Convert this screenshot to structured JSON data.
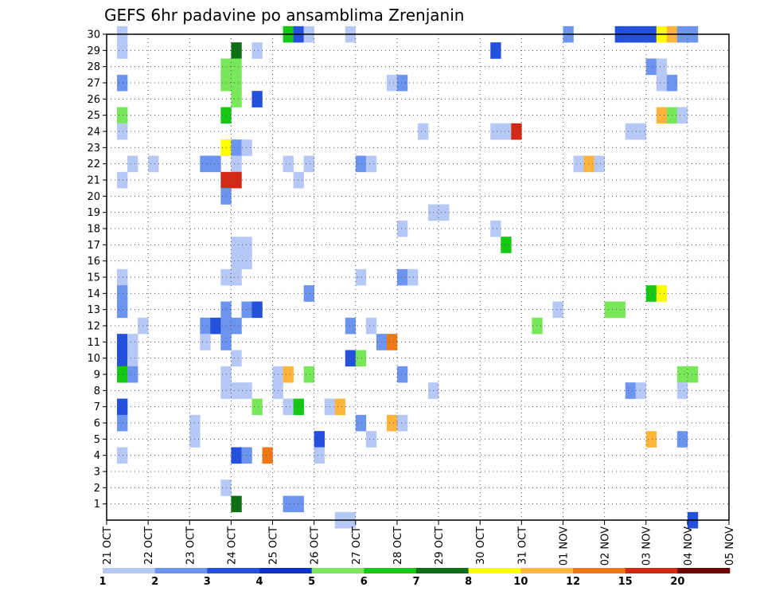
{
  "chart_data": {
    "type": "heatmap",
    "title": "GEFS 6hr padavine po ansamblima Zrenjanin",
    "xlabel": "",
    "ylabel": "",
    "x_ticks": [
      "21 OCT",
      "22 OCT",
      "23 OCT",
      "24 OCT",
      "25 OCT",
      "26 OCT",
      "27 OCT",
      "28 OCT",
      "29 OCT",
      "30 OCT",
      "31 OCT",
      "01 NOV",
      "02 NOV",
      "03 NOV",
      "04 NOV",
      "05 NOV"
    ],
    "x_range_days": [
      0,
      15
    ],
    "y_ticks": [
      1,
      2,
      3,
      4,
      5,
      6,
      7,
      8,
      9,
      10,
      11,
      12,
      13,
      14,
      15,
      16,
      17,
      18,
      19,
      20,
      21,
      22,
      23,
      24,
      25,
      26,
      27,
      28,
      29,
      30
    ],
    "y_range": [
      0,
      30
    ],
    "grid": true,
    "colorbar": {
      "labels": [
        "1",
        "2",
        "3",
        "4",
        "5",
        "6",
        "7",
        "8",
        "10",
        "12",
        "15",
        "20"
      ],
      "colors": [
        "#b6c8f5",
        "#6d94ee",
        "#2350dc",
        "#0a32c8",
        "#78e85a",
        "#14c814",
        "#0e6e14",
        "#ffff00",
        "#ffb43c",
        "#f07814",
        "#d22814",
        "#6e0000"
      ]
    },
    "cells": [
      [
        1,
        30,
        1
      ],
      [
        1,
        29,
        1
      ],
      [
        1,
        27,
        2
      ],
      [
        1,
        25,
        5
      ],
      [
        1,
        24,
        1
      ],
      [
        1,
        21,
        1
      ],
      [
        1,
        15,
        1
      ],
      [
        1,
        14,
        2
      ],
      [
        1,
        11,
        3
      ],
      [
        1,
        10,
        3
      ],
      [
        1,
        9,
        6
      ],
      [
        1,
        7,
        3
      ],
      [
        1,
        6,
        2
      ],
      [
        1,
        4,
        1
      ],
      [
        1,
        13,
        2
      ],
      [
        2,
        22,
        1
      ],
      [
        2,
        11,
        1
      ],
      [
        2,
        10,
        1
      ],
      [
        2,
        9,
        2
      ],
      [
        3,
        12,
        1
      ],
      [
        4,
        22,
        1
      ],
      [
        8,
        6,
        1
      ],
      [
        8,
        5,
        1
      ],
      [
        9,
        22,
        2
      ],
      [
        9,
        12,
        2
      ],
      [
        9,
        11,
        1
      ],
      [
        10,
        22,
        2
      ],
      [
        10,
        12,
        3
      ],
      [
        11,
        23,
        8
      ],
      [
        11,
        21,
        15
      ],
      [
        11,
        20,
        2
      ],
      [
        11,
        15,
        1
      ],
      [
        11,
        13,
        2
      ],
      [
        11,
        12,
        2
      ],
      [
        11,
        11,
        2
      ],
      [
        11,
        9,
        1
      ],
      [
        11,
        8,
        1
      ],
      [
        11,
        2,
        1
      ],
      [
        11,
        28,
        5
      ],
      [
        11,
        27,
        5
      ],
      [
        11,
        25,
        6
      ],
      [
        12,
        29,
        7
      ],
      [
        12,
        28,
        5
      ],
      [
        12,
        27,
        5
      ],
      [
        12,
        26,
        5
      ],
      [
        12,
        23,
        2
      ],
      [
        12,
        22,
        1
      ],
      [
        12,
        21,
        15
      ],
      [
        12,
        17,
        1
      ],
      [
        12,
        16,
        1
      ],
      [
        12,
        15,
        1
      ],
      [
        12,
        12,
        2
      ],
      [
        12,
        10,
        1
      ],
      [
        12,
        8,
        1
      ],
      [
        12,
        4,
        3
      ],
      [
        12,
        1,
        7
      ],
      [
        13,
        23,
        1
      ],
      [
        13,
        17,
        1
      ],
      [
        13,
        16,
        1
      ],
      [
        13,
        13,
        2
      ],
      [
        13,
        8,
        1
      ],
      [
        13,
        4,
        2
      ],
      [
        14,
        29,
        1
      ],
      [
        14,
        26,
        3
      ],
      [
        14,
        13,
        3
      ],
      [
        14,
        7,
        5
      ],
      [
        15,
        4,
        12
      ],
      [
        16,
        9,
        1
      ],
      [
        16,
        8,
        1
      ],
      [
        17,
        30,
        6
      ],
      [
        17,
        22,
        1
      ],
      [
        17,
        9,
        10
      ],
      [
        17,
        7,
        1
      ],
      [
        17,
        1,
        2
      ],
      [
        18,
        30,
        3
      ],
      [
        18,
        21,
        1
      ],
      [
        18,
        7,
        6
      ],
      [
        18,
        1,
        2
      ],
      [
        19,
        30,
        1
      ],
      [
        19,
        22,
        1
      ],
      [
        19,
        14,
        2
      ],
      [
        19,
        9,
        5
      ],
      [
        20,
        5,
        3
      ],
      [
        20,
        4,
        1
      ],
      [
        21,
        7,
        1
      ],
      [
        22,
        7,
        10
      ],
      [
        22,
        0,
        1
      ],
      [
        23,
        30,
        1
      ],
      [
        23,
        0,
        1
      ],
      [
        23,
        12,
        2
      ],
      [
        23,
        10,
        3
      ],
      [
        24,
        22,
        2
      ],
      [
        24,
        15,
        1
      ],
      [
        24,
        10,
        5
      ],
      [
        24,
        6,
        2
      ],
      [
        25,
        22,
        1
      ],
      [
        25,
        12,
        1
      ],
      [
        25,
        5,
        1
      ],
      [
        26,
        11,
        2
      ],
      [
        27,
        27,
        1
      ],
      [
        27,
        11,
        12
      ],
      [
        27,
        6,
        10
      ],
      [
        28,
        27,
        2
      ],
      [
        28,
        18,
        1
      ],
      [
        28,
        15,
        2
      ],
      [
        28,
        9,
        2
      ],
      [
        28,
        6,
        1
      ],
      [
        29,
        15,
        1
      ],
      [
        30,
        24,
        1
      ],
      [
        31,
        19,
        1
      ],
      [
        31,
        8,
        1
      ],
      [
        32,
        19,
        1
      ],
      [
        37,
        29,
        3
      ],
      [
        37,
        24,
        1
      ],
      [
        37,
        18,
        1
      ],
      [
        38,
        24,
        1
      ],
      [
        38,
        17,
        6
      ],
      [
        39,
        24,
        15
      ],
      [
        41,
        12,
        5
      ],
      [
        43,
        13,
        1
      ],
      [
        44,
        30,
        2
      ],
      [
        45,
        22,
        1
      ],
      [
        46,
        22,
        10
      ],
      [
        47,
        22,
        1
      ],
      [
        48,
        13,
        5
      ],
      [
        49,
        13,
        5
      ],
      [
        49,
        30,
        3
      ],
      [
        50,
        30,
        3
      ],
      [
        50,
        24,
        1
      ],
      [
        50,
        8,
        2
      ],
      [
        51,
        30,
        3
      ],
      [
        51,
        24,
        1
      ],
      [
        51,
        8,
        1
      ],
      [
        52,
        28,
        2
      ],
      [
        52,
        14,
        6
      ],
      [
        52,
        5,
        10
      ],
      [
        52,
        30,
        3
      ],
      [
        53,
        30,
        8
      ],
      [
        53,
        28,
        1
      ],
      [
        53,
        27,
        1
      ],
      [
        53,
        25,
        10
      ],
      [
        53,
        14,
        8
      ],
      [
        54,
        30,
        10
      ],
      [
        54,
        27,
        2
      ],
      [
        54,
        25,
        5
      ],
      [
        55,
        30,
        2
      ],
      [
        55,
        25,
        1
      ],
      [
        55,
        9,
        5
      ],
      [
        55,
        8,
        1
      ],
      [
        55,
        5,
        2
      ],
      [
        56,
        30,
        2
      ],
      [
        56,
        9,
        5
      ],
      [
        56,
        0,
        3
      ]
    ]
  }
}
